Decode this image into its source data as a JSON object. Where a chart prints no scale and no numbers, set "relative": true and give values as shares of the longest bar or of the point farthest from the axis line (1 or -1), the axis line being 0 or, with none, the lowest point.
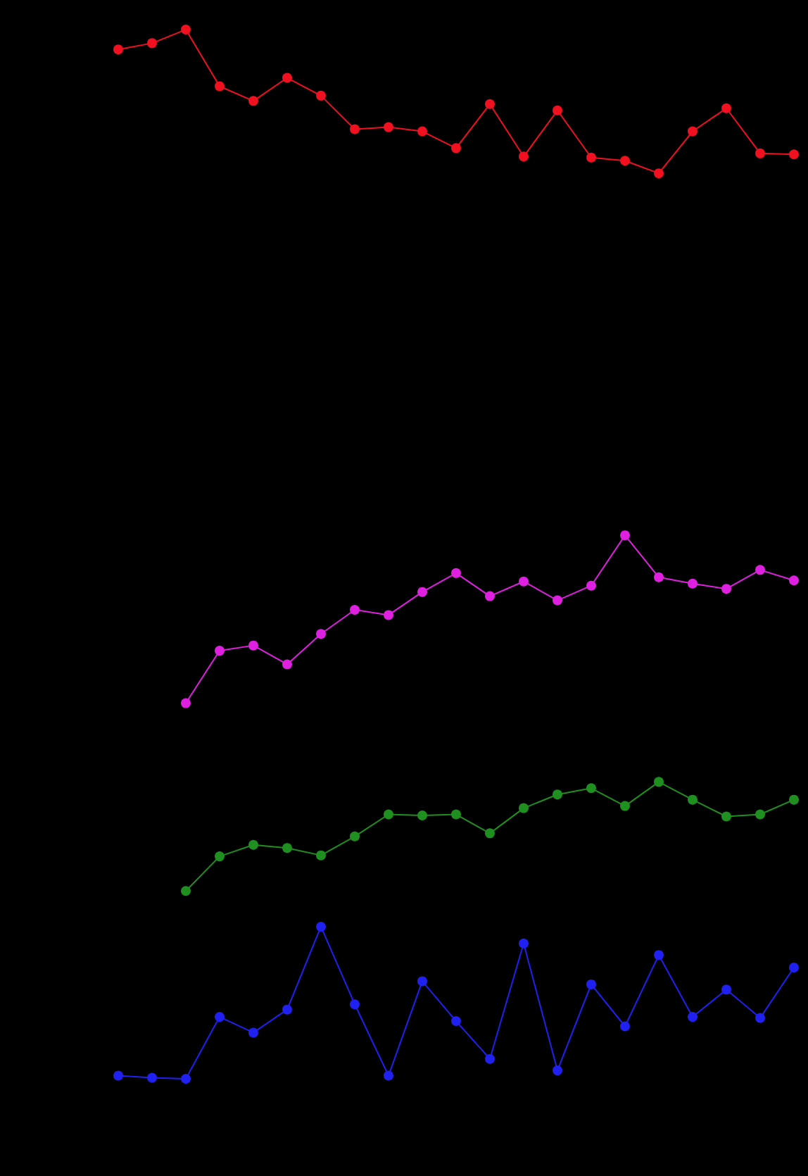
{
  "chart_data": {
    "type": "line",
    "relative": true,
    "marker": "circle",
    "line_style": "solid",
    "grid": false,
    "categories": [
      null,
      null,
      null,
      null,
      null,
      null,
      null,
      null,
      null,
      null,
      null,
      null,
      null,
      null,
      null,
      null,
      null,
      null,
      null,
      null,
      null
    ],
    "series": [
      {
        "color": "#f01020",
        "values": [
          0.981,
          0.987,
          1,
          0.946,
          0.932,
          0.954,
          0.937,
          0.905,
          0.907,
          0.903,
          0.887,
          0.929,
          0.879,
          0.923,
          0.878,
          0.875,
          0.863,
          0.903,
          0.925,
          0.882,
          0.881
        ]
      },
      {
        "color": "#e020e0",
        "values": [
          null,
          null,
          0.358,
          0.408,
          0.413,
          0.395,
          0.424,
          0.447,
          0.442,
          0.464,
          0.482,
          0.46,
          0.474,
          0.456,
          0.47,
          0.518,
          0.478,
          0.472,
          0.467,
          0.485,
          0.475
        ]
      },
      {
        "color": "#1f8f1f",
        "values": [
          null,
          null,
          0.179,
          0.212,
          0.223,
          0.22,
          0.213,
          0.231,
          0.252,
          0.251,
          0.252,
          0.234,
          0.258,
          0.271,
          0.277,
          0.26,
          0.283,
          0.266,
          0.25,
          0.252,
          0.266
        ]
      },
      {
        "color": "#2020f0",
        "values": [
          0.003,
          0.001,
          0,
          0.059,
          0.044,
          0.066,
          0.145,
          0.071,
          0.003,
          0.093,
          0.055,
          0.019,
          0.129,
          0.008,
          0.09,
          0.05,
          0.118,
          0.059,
          0.085,
          0.058,
          0.106
        ]
      }
    ]
  }
}
